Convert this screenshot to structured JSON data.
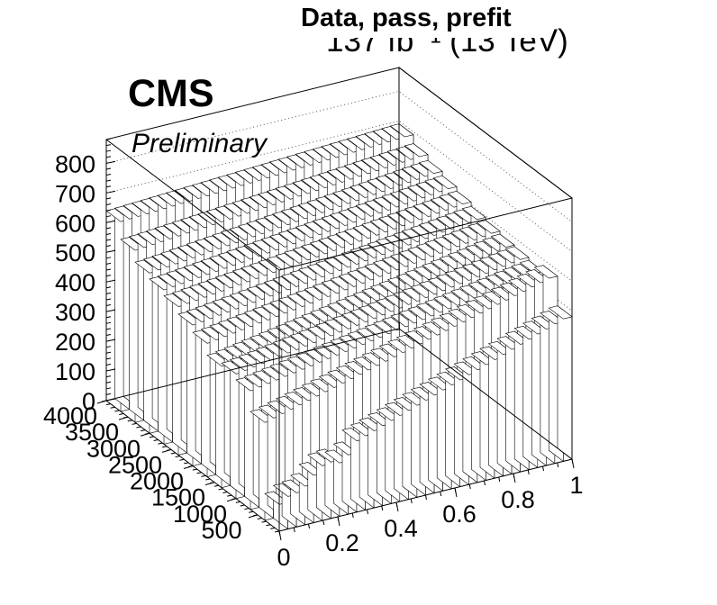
{
  "chart_data": {
    "type": "lego3d",
    "title": "Data, pass, prefit",
    "lumi_label": "137 fb⁻¹ (13 TeV)",
    "experiment_label": "CMS",
    "status_label": "Preliminary",
    "x_axis": {
      "range": [
        0,
        1
      ],
      "ticks": [
        "0",
        "0.2",
        "0.4",
        "0.6",
        "0.8",
        "1"
      ]
    },
    "y_axis": {
      "range": [
        0,
        4000
      ],
      "ticks": [
        "500",
        "1000",
        "1500",
        "2000",
        "2500",
        "3000",
        "3500",
        "4000"
      ]
    },
    "z_axis": {
      "range": [
        0,
        880
      ],
      "ticks": [
        "0",
        "100",
        "200",
        "300",
        "400",
        "500",
        "600",
        "700",
        "800"
      ]
    },
    "y_bins": 12,
    "x_bins": 34,
    "rows": [
      {
        "y_bin": 1,
        "left": 320,
        "right": 575
      },
      {
        "y_bin": 2,
        "left": 330,
        "right": 580
      },
      {
        "y_bin": 3,
        "left": 400,
        "right": 560
      },
      {
        "y_bin": 4,
        "left": 420,
        "right": 570
      },
      {
        "y_bin": 5,
        "left": 410,
        "right": 575
      },
      {
        "y_bin": 6,
        "left": 450,
        "right": 585
      },
      {
        "y_bin": 7,
        "left": 475,
        "right": 595
      },
      {
        "y_bin": 8,
        "left": 500,
        "right": 610
      },
      {
        "y_bin": 9,
        "left": 520,
        "right": 625
      },
      {
        "y_bin": 10,
        "left": 540,
        "right": 640
      },
      {
        "y_bin": 11,
        "left": 580,
        "right": 660
      },
      {
        "y_bin": 12,
        "left": 640,
        "right": 690
      }
    ],
    "front_bar_heights": [
      90,
      110,
      115,
      130,
      160,
      185,
      190,
      180,
      200,
      240,
      250,
      260,
      270,
      280,
      290,
      300,
      310,
      320,
      330,
      340,
      350,
      360,
      370,
      380,
      390,
      400,
      410,
      420,
      430,
      440,
      450,
      460,
      470,
      480
    ]
  }
}
